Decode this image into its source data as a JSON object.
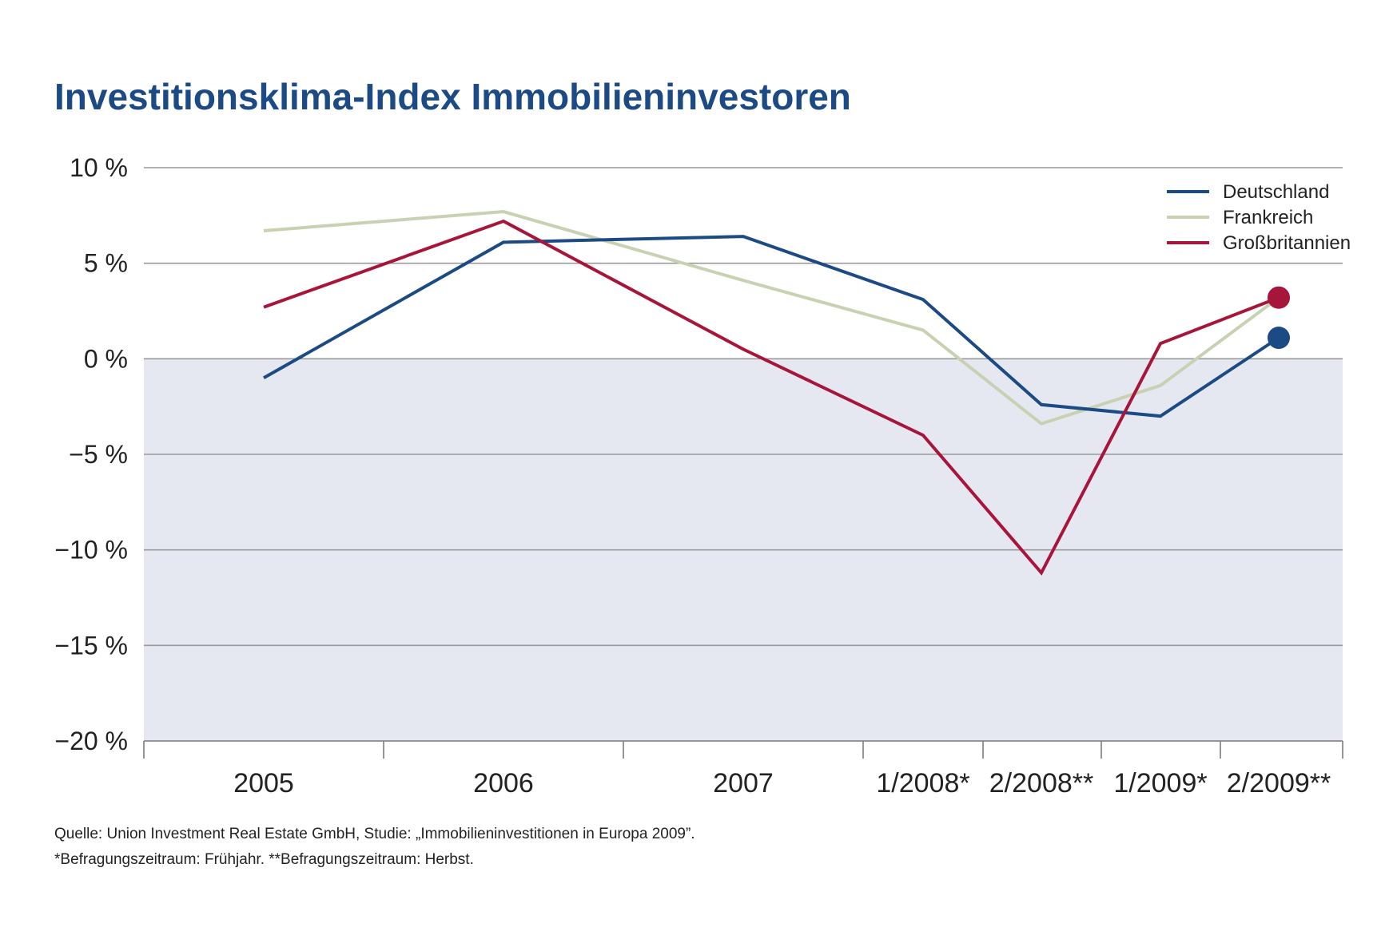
{
  "chart_data": {
    "type": "line",
    "title": "Investitionsklima-Index Immobilieninvestoren",
    "categories": [
      "2005",
      "2006",
      "2007",
      "1/2008*",
      "2/2008**",
      "1/2009*",
      "2/2009**"
    ],
    "y_ticks": [
      "10 %",
      "5 %",
      "0 %",
      "−5 %",
      "−10 %",
      "−15 %",
      "−20 %"
    ],
    "ylim": [
      -20,
      10
    ],
    "grid": true,
    "negative_area_shaded": true,
    "legend_position": "top-right",
    "series": [
      {
        "name": "Deutschland",
        "color": "#1b4a84",
        "values": [
          -1.0,
          6.1,
          6.4,
          3.1,
          -2.4,
          -3.0,
          1.1
        ]
      },
      {
        "name": "Frankreich",
        "color": "#c8d2b3",
        "values": [
          6.7,
          7.7,
          4.1,
          1.5,
          -3.4,
          -1.4,
          3.2
        ]
      },
      {
        "name": "Großbritannien",
        "color": "#a8153a",
        "values": [
          2.7,
          7.2,
          0.5,
          -4.0,
          -11.2,
          0.8,
          3.2
        ]
      }
    ]
  },
  "notes": {
    "source": "Quelle: Union Investment Real Estate GmbH, Studie: „Immobilieninvestitionen in Europa 2009”.",
    "footnote": "*Befragungszeitraum: Frühjahr. **Befragungszeitraum: Herbst."
  },
  "colors": {
    "negative_area": "#e6e8f1",
    "gridline": "#9a9a9a",
    "axis": "#8a8a8a"
  }
}
